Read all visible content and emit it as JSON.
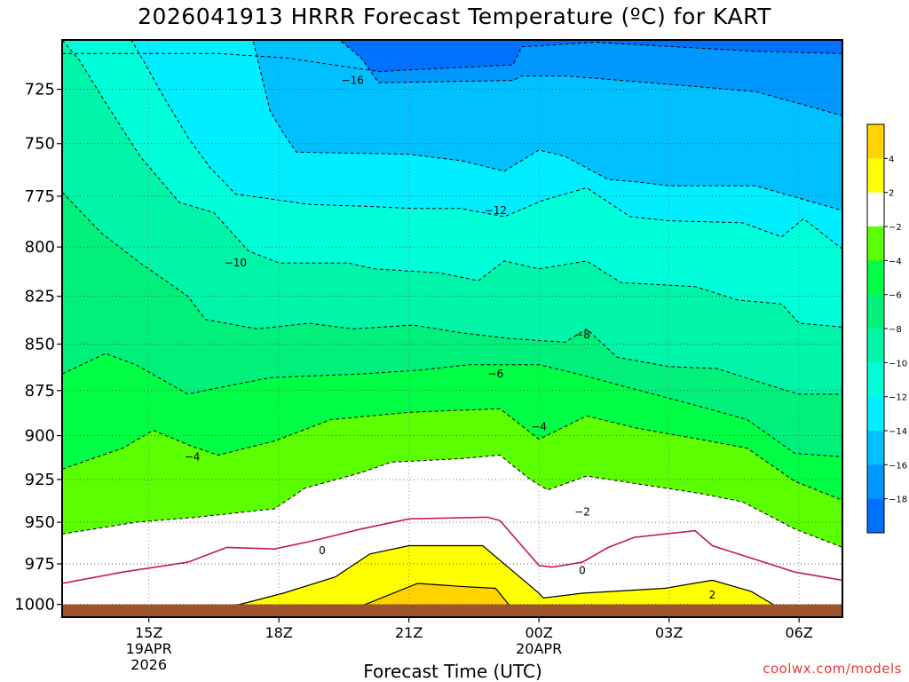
{
  "title": "2026041913 HRRR Forecast Temperature (ºC) for KART",
  "xlabel": "Forecast Time (UTC)",
  "credit": "coolwx.com/models",
  "chart_data": {
    "type": "contour",
    "x_ticks": [
      {
        "hour": 15,
        "lines": [
          "15Z",
          "19APR",
          "2026"
        ]
      },
      {
        "hour": 18,
        "lines": [
          "18Z"
        ]
      },
      {
        "hour": 21,
        "lines": [
          "21Z"
        ]
      },
      {
        "hour": 24,
        "lines": [
          "00Z",
          "20APR"
        ]
      },
      {
        "hour": 27,
        "lines": [
          "03Z"
        ]
      },
      {
        "hour": 30,
        "lines": [
          "06Z"
        ]
      }
    ],
    "xlim": [
      13,
      31
    ],
    "y_ticks": [
      725,
      750,
      775,
      800,
      825,
      850,
      875,
      900,
      925,
      950,
      975,
      1000
    ],
    "ylim": [
      703,
      1008
    ],
    "y_scale": "log",
    "grid": "dotted",
    "colorbar": {
      "ticks": [
        4,
        2,
        -2,
        -4,
        -6,
        -8,
        -10,
        -12,
        -14,
        -16,
        -18
      ],
      "bands": [
        {
          "from": 6,
          "to": 4,
          "color": "#ffd200"
        },
        {
          "from": 4,
          "to": 2,
          "color": "#ffff00"
        },
        {
          "from": 2,
          "to": -2,
          "color": "#ffffff"
        },
        {
          "from": -2,
          "to": -4,
          "color": "#5bff00"
        },
        {
          "from": -4,
          "to": -6,
          "color": "#00ff44"
        },
        {
          "from": -6,
          "to": -8,
          "color": "#00f07a"
        },
        {
          "from": -8,
          "to": -10,
          "color": "#00f5a8"
        },
        {
          "from": -10,
          "to": -12,
          "color": "#00ffd9"
        },
        {
          "from": -12,
          "to": -14,
          "color": "#00eeff"
        },
        {
          "from": -14,
          "to": -16,
          "color": "#00c0ff"
        },
        {
          "from": -16,
          "to": -18,
          "color": "#0098ff"
        },
        {
          "from": -18,
          "to": -20,
          "color": "#0070ff"
        }
      ]
    },
    "ground": {
      "color": "#a0522d",
      "top_hpa": 1000
    },
    "bands": [
      {
        "level": "above -20",
        "color": "#0070ff",
        "boundary": null
      },
      {
        "level": "-16 to -18",
        "color": "#0098ff",
        "boundary": [
          [
            13.0,
            709
          ],
          [
            16.6,
            709
          ],
          [
            18.2,
            711
          ],
          [
            20.3,
            717
          ],
          [
            23.4,
            714
          ],
          [
            23.6,
            706
          ],
          [
            25.3,
            704
          ],
          [
            29.0,
            708
          ],
          [
            31.0,
            709
          ]
        ]
      },
      {
        "level": "-14 to -16",
        "color": "#00c0ff",
        "boundary": [
          [
            13.0,
            703
          ],
          [
            19.4,
            703
          ],
          [
            19.9,
            711
          ],
          [
            20.3,
            722
          ],
          [
            23.4,
            721
          ],
          [
            23.6,
            719
          ],
          [
            24.6,
            719
          ],
          [
            25.3,
            720
          ],
          [
            29.0,
            726
          ],
          [
            31.0,
            737
          ]
        ]
      },
      {
        "level": "-12 to -14",
        "color": "#00eeff",
        "boundary": [
          [
            13.0,
            703
          ],
          [
            17.4,
            703
          ],
          [
            17.8,
            735
          ],
          [
            18.1,
            745
          ],
          [
            18.4,
            754
          ],
          [
            21.0,
            755
          ],
          [
            22.2,
            758
          ],
          [
            23.2,
            763
          ],
          [
            24.0,
            753
          ],
          [
            24.6,
            756
          ],
          [
            25.6,
            767
          ],
          [
            26.2,
            768
          ],
          [
            27.0,
            770
          ],
          [
            29.0,
            770
          ],
          [
            31.0,
            782
          ]
        ]
      },
      {
        "level": "-10 to -12",
        "color": "#00ffd9",
        "boundary": [
          [
            13.0,
            703
          ],
          [
            14.6,
            703
          ],
          [
            14.9,
            713
          ],
          [
            15.3,
            727
          ],
          [
            15.9,
            747
          ],
          [
            16.4,
            761
          ],
          [
            17.0,
            774
          ],
          [
            18.7,
            779
          ],
          [
            20.1,
            780
          ],
          [
            21.1,
            781
          ],
          [
            22.2,
            781
          ],
          [
            23.2,
            785
          ],
          [
            24.1,
            777
          ],
          [
            25.1,
            771
          ],
          [
            26.1,
            785
          ],
          [
            27.0,
            787
          ],
          [
            28.7,
            788
          ],
          [
            29.6,
            795
          ],
          [
            30.1,
            786
          ],
          [
            31.0,
            801
          ]
        ]
      },
      {
        "level": "-8 to -10",
        "color": "#00f5a8",
        "boundary": [
          [
            13.0,
            703
          ],
          [
            13.4,
            712
          ],
          [
            14.0,
            731
          ],
          [
            14.8,
            756
          ],
          [
            15.7,
            778
          ],
          [
            16.5,
            783
          ],
          [
            17.3,
            802
          ],
          [
            18.0,
            808
          ],
          [
            19.6,
            808
          ],
          [
            20.2,
            811
          ],
          [
            21.7,
            813
          ],
          [
            22.6,
            817
          ],
          [
            23.2,
            807
          ],
          [
            24.0,
            811
          ],
          [
            25.1,
            807
          ],
          [
            25.9,
            818
          ],
          [
            27.6,
            820
          ],
          [
            28.6,
            827
          ],
          [
            29.6,
            829
          ],
          [
            30.0,
            839
          ],
          [
            31.0,
            841
          ]
        ]
      },
      {
        "level": "-6 to -8",
        "color": "#00f07a",
        "boundary": [
          [
            13.0,
            773
          ],
          [
            13.9,
            793
          ],
          [
            14.8,
            808
          ],
          [
            15.9,
            825
          ],
          [
            16.3,
            837
          ],
          [
            17.5,
            842
          ],
          [
            18.7,
            839
          ],
          [
            19.7,
            842
          ],
          [
            21.1,
            840
          ],
          [
            22.2,
            844
          ],
          [
            23.3,
            847
          ],
          [
            24.6,
            849
          ],
          [
            25.1,
            842
          ],
          [
            25.8,
            857
          ],
          [
            27.0,
            862
          ],
          [
            28.1,
            863
          ],
          [
            29.3,
            872
          ],
          [
            30.0,
            877
          ],
          [
            31.0,
            877
          ]
        ]
      },
      {
        "level": "-4 to -6",
        "color": "#00ff44",
        "boundary": [
          [
            13.0,
            866
          ],
          [
            14.0,
            855
          ],
          [
            14.7,
            861
          ],
          [
            15.9,
            877
          ],
          [
            16.5,
            874
          ],
          [
            17.8,
            868
          ],
          [
            19.9,
            866
          ],
          [
            21.2,
            864
          ],
          [
            22.4,
            861
          ],
          [
            24.0,
            861
          ],
          [
            24.9,
            866
          ],
          [
            26.0,
            873
          ],
          [
            27.6,
            883
          ],
          [
            28.8,
            891
          ],
          [
            29.9,
            910
          ],
          [
            31.0,
            912
          ]
        ]
      },
      {
        "level": "-2 to -4",
        "color": "#5bff00",
        "boundary": [
          [
            13.0,
            919
          ],
          [
            14.4,
            907
          ],
          [
            15.1,
            897
          ],
          [
            16.0,
            906
          ],
          [
            16.6,
            911
          ],
          [
            17.9,
            903
          ],
          [
            19.2,
            891
          ],
          [
            21.0,
            887
          ],
          [
            22.0,
            886
          ],
          [
            23.1,
            885
          ],
          [
            24.0,
            902
          ],
          [
            25.1,
            889
          ],
          [
            26.3,
            896
          ],
          [
            27.7,
            902
          ],
          [
            28.8,
            907
          ],
          [
            29.9,
            926
          ],
          [
            31.0,
            937
          ]
        ]
      },
      {
        "level": "-2 to 2",
        "color": "#ffffff",
        "boundary": [
          [
            13.0,
            957
          ],
          [
            14.7,
            950
          ],
          [
            16.1,
            947
          ],
          [
            17.9,
            942
          ],
          [
            18.6,
            930
          ],
          [
            19.9,
            921
          ],
          [
            20.6,
            915
          ],
          [
            22.2,
            913
          ],
          [
            23.1,
            911
          ],
          [
            23.8,
            925
          ],
          [
            24.2,
            931
          ],
          [
            25.1,
            923
          ],
          [
            26.4,
            928
          ],
          [
            27.7,
            933
          ],
          [
            28.7,
            938
          ],
          [
            29.9,
            954
          ],
          [
            31.0,
            965
          ]
        ]
      },
      {
        "level": "2 to 4",
        "color": "#ffff00",
        "boundary": [
          [
            16.2,
            1003
          ],
          [
            17.1,
            1000
          ],
          [
            18.1,
            993
          ],
          [
            19.3,
            983
          ],
          [
            20.1,
            969
          ],
          [
            21.0,
            964
          ],
          [
            22.0,
            964
          ],
          [
            22.7,
            964
          ],
          [
            24.0,
            993
          ],
          [
            24.1,
            996
          ],
          [
            25.0,
            993
          ],
          [
            26.9,
            990
          ],
          [
            28.0,
            985
          ],
          [
            28.9,
            992
          ],
          [
            29.4,
            1000
          ],
          [
            29.7,
            1004
          ]
        ]
      },
      {
        "level": "4 to 6",
        "color": "#ffd200",
        "boundary": [
          [
            19.5,
            1003
          ],
          [
            20.0,
            1000
          ],
          [
            21.2,
            987
          ],
          [
            22.3,
            989
          ],
          [
            23.0,
            990
          ],
          [
            23.3,
            1000
          ],
          [
            23.5,
            1003
          ]
        ]
      }
    ],
    "contour_labels": [
      {
        "text": "−16",
        "hour": 19.7,
        "hpa": 721
      },
      {
        "text": "−12",
        "hour": 23.0,
        "hpa": 782
      },
      {
        "text": "−10",
        "hour": 17.0,
        "hpa": 808
      },
      {
        "text": "−8",
        "hour": 25.0,
        "hpa": 845
      },
      {
        "text": "−6",
        "hour": 23.0,
        "hpa": 866
      },
      {
        "text": "−4",
        "hour": 24.0,
        "hpa": 895
      },
      {
        "text": "−4",
        "hour": 16.0,
        "hpa": 912
      },
      {
        "text": "−2",
        "hour": 25.0,
        "hpa": 944
      },
      {
        "text": "0",
        "hour": 19.0,
        "hpa": 967
      },
      {
        "text": "0",
        "hour": 25.0,
        "hpa": 979
      },
      {
        "text": "2",
        "hour": 28.0,
        "hpa": 994
      }
    ],
    "zero_line": {
      "color": "#c2185b",
      "points": [
        [
          13.0,
          987
        ],
        [
          14.4,
          980
        ],
        [
          15.9,
          974
        ],
        [
          16.8,
          965
        ],
        [
          17.9,
          966
        ],
        [
          18.8,
          961
        ],
        [
          19.9,
          954
        ],
        [
          21.0,
          948
        ],
        [
          22.8,
          947
        ],
        [
          23.1,
          949
        ],
        [
          24.0,
          976
        ],
        [
          24.3,
          977
        ],
        [
          25.0,
          974
        ],
        [
          25.6,
          965
        ],
        [
          26.2,
          959
        ],
        [
          27.6,
          955
        ],
        [
          28.0,
          964
        ],
        [
          29.9,
          980
        ],
        [
          31.0,
          985
        ]
      ]
    }
  }
}
